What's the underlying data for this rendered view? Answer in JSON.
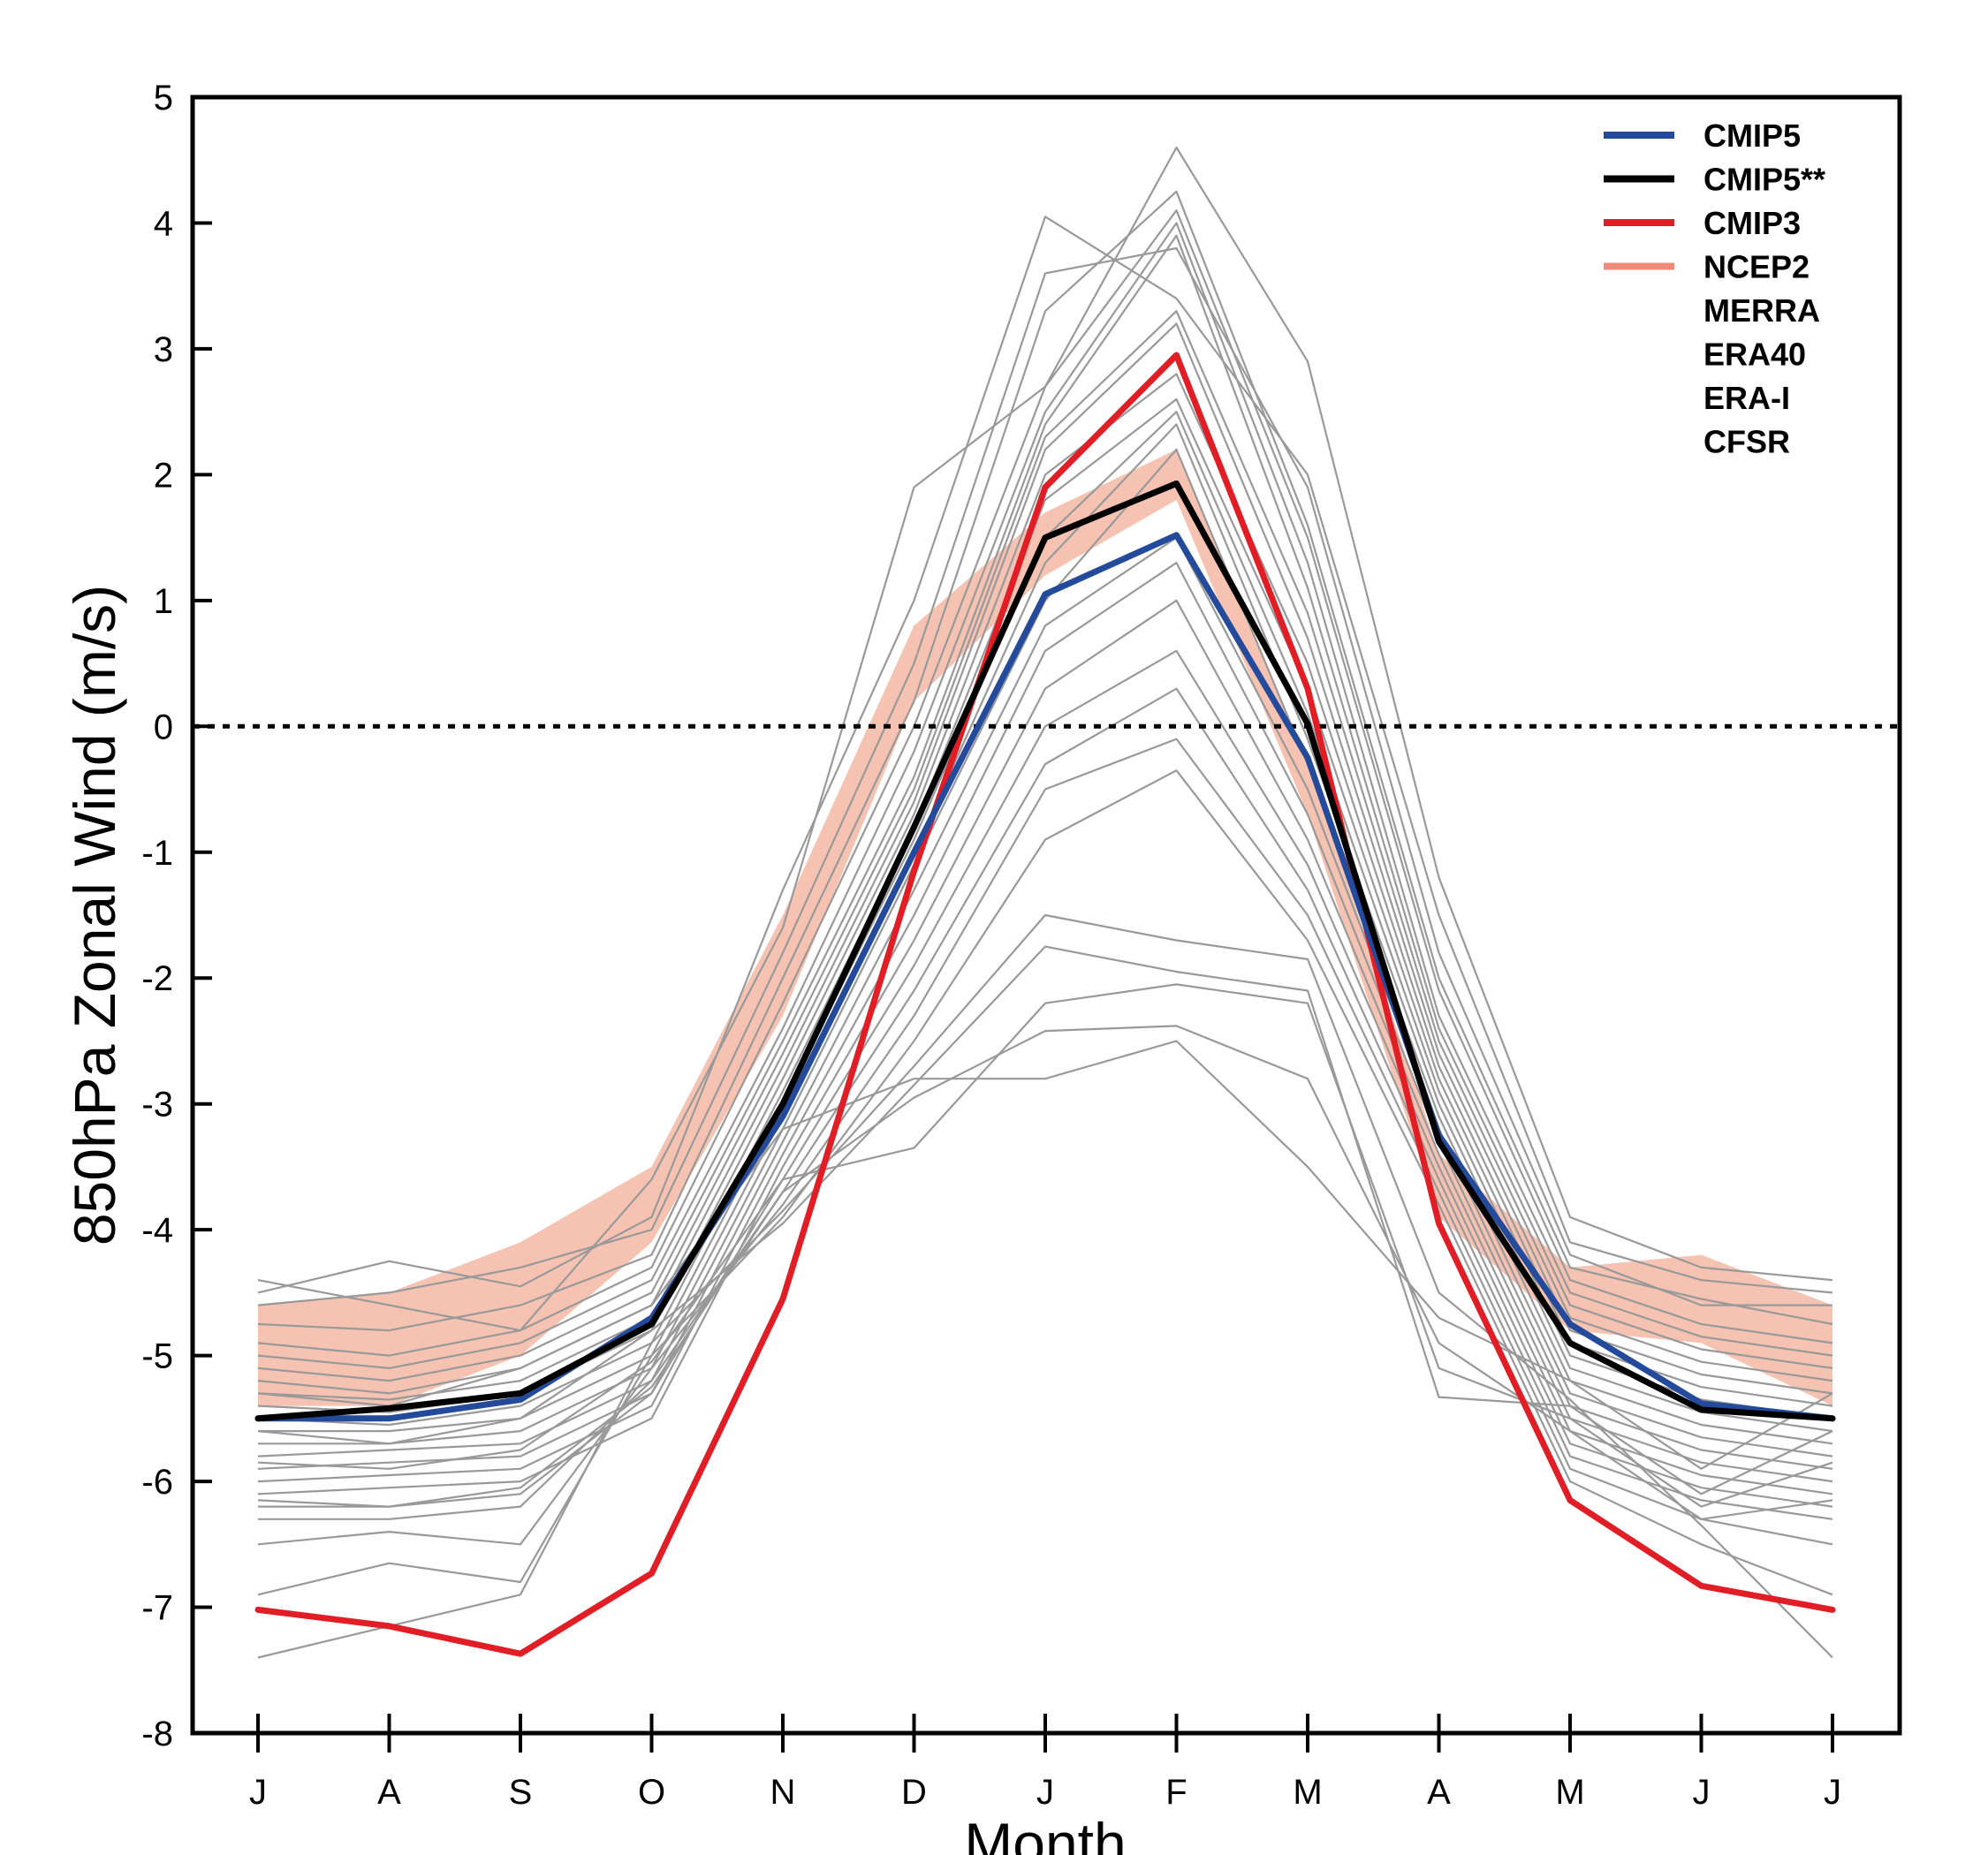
{
  "chart_data": {
    "type": "line",
    "xlabel": "Month",
    "ylabel": "850hPa Zonal Wind (m/s)",
    "categories": [
      "J",
      "A",
      "S",
      "O",
      "N",
      "D",
      "J",
      "F",
      "M",
      "A",
      "M",
      "J",
      "J"
    ],
    "ylim": [
      -8,
      5
    ],
    "yticks": [
      5,
      4,
      3,
      2,
      1,
      0,
      -1,
      -2,
      -3,
      -4,
      -5,
      -6,
      -7,
      -8
    ],
    "zero_line": {
      "value": 0,
      "style": "dotted",
      "color": "#000000"
    },
    "legend": {
      "placement": "top-right",
      "entries": [
        {
          "label": "CMIP5",
          "color": "#234a9b"
        },
        {
          "label": "CMIP5**",
          "color": "#000000"
        },
        {
          "label": "CMIP3",
          "color": "#e11d25"
        },
        {
          "label": "NCEP2",
          "color": "#f08a78"
        },
        {
          "label": "MERRA"
        },
        {
          "label": "ERA40"
        },
        {
          "label": "ERA-I"
        },
        {
          "label": "CFSR"
        }
      ]
    },
    "reanalysis_band": {
      "color": "#f4b9a4",
      "upper": [
        -4.6,
        -4.5,
        -4.1,
        -3.5,
        -1.5,
        0.8,
        1.7,
        2.2,
        -0.3,
        -3.4,
        -4.3,
        -4.2,
        -4.6
      ],
      "lower": [
        -5.4,
        -5.4,
        -5.0,
        -4.1,
        -2.3,
        0.2,
        1.2,
        1.8,
        -0.7,
        -3.9,
        -4.8,
        -4.9,
        -5.4
      ]
    },
    "series": [
      {
        "name": "CMIP5",
        "color": "#234a9b",
        "values": [
          -5.5,
          -5.5,
          -5.35,
          -4.7,
          -3.1,
          -1.0,
          1.05,
          1.52,
          -0.25,
          -3.25,
          -4.75,
          -5.38,
          -5.5
        ]
      },
      {
        "name": "CMIP5**",
        "color": "#000000",
        "values": [
          -5.5,
          -5.42,
          -5.3,
          -4.75,
          -3.0,
          -0.8,
          1.5,
          1.93,
          0.02,
          -3.3,
          -4.9,
          -5.43,
          -5.5
        ]
      },
      {
        "name": "CMIP3",
        "color": "#e11d25",
        "values": [
          -7.02,
          -7.15,
          -7.37,
          -6.73,
          -4.55,
          -1.15,
          1.9,
          2.95,
          0.3,
          -3.95,
          -6.15,
          -6.83,
          -7.02
        ]
      }
    ],
    "models": {
      "color": "#999999",
      "values": [
        [
          -4.4,
          -4.6,
          -4.8,
          -3.6,
          -1.6,
          1.9,
          2.7,
          4.6,
          2.9,
          -1.2,
          -3.9,
          -4.3,
          -4.4
        ],
        [
          -4.5,
          -4.25,
          -4.45,
          -3.9,
          -1.3,
          1.0,
          4.05,
          3.4,
          2.0,
          -1.5,
          -4.1,
          -4.4,
          -4.5
        ],
        [
          -4.6,
          -4.5,
          -4.3,
          -4.0,
          -1.8,
          0.5,
          3.6,
          3.8,
          1.9,
          -1.8,
          -4.2,
          -4.6,
          -4.6
        ],
        [
          -4.75,
          -4.8,
          -4.6,
          -4.2,
          -2.0,
          0.2,
          3.3,
          4.25,
          1.6,
          -2.0,
          -4.3,
          -4.55,
          -4.75
        ],
        [
          -4.9,
          -5.0,
          -4.8,
          -4.3,
          -2.2,
          0.0,
          2.7,
          4.1,
          1.5,
          -2.1,
          -4.4,
          -4.75,
          -4.9
        ],
        [
          -5.0,
          -5.1,
          -4.9,
          -4.4,
          -2.4,
          -0.2,
          2.5,
          4.0,
          1.3,
          -2.3,
          -4.5,
          -4.85,
          -5.0
        ],
        [
          -5.1,
          -5.2,
          -5.0,
          -4.5,
          -2.5,
          -0.4,
          2.4,
          3.9,
          1.1,
          -2.4,
          -4.6,
          -4.95,
          -5.1
        ],
        [
          -5.2,
          -5.3,
          -5.1,
          -4.6,
          -2.6,
          -0.5,
          2.3,
          3.3,
          0.9,
          -2.5,
          -4.7,
          -5.05,
          -5.2
        ],
        [
          -5.3,
          -5.35,
          -5.2,
          -4.7,
          -2.7,
          -0.6,
          2.2,
          3.2,
          0.7,
          -2.6,
          -4.8,
          -5.15,
          -5.3
        ],
        [
          -5.4,
          -5.45,
          -5.3,
          -4.8,
          -2.8,
          -0.7,
          2.0,
          2.8,
          0.5,
          -2.7,
          -4.9,
          -5.25,
          -5.4
        ],
        [
          -5.5,
          -5.55,
          -5.4,
          -4.9,
          -2.9,
          -0.8,
          1.8,
          2.6,
          0.3,
          -2.8,
          -5.0,
          -5.35,
          -5.5
        ],
        [
          -5.6,
          -5.6,
          -5.5,
          -5.0,
          -3.0,
          -0.9,
          1.5,
          2.5,
          0.1,
          -2.9,
          -5.1,
          -5.45,
          -5.6
        ],
        [
          -5.7,
          -5.7,
          -5.6,
          -5.1,
          -3.1,
          -1.0,
          1.3,
          2.4,
          -0.1,
          -3.0,
          -5.2,
          -5.55,
          -5.7
        ],
        [
          -5.8,
          -5.75,
          -5.7,
          -5.2,
          -3.2,
          -1.1,
          1.0,
          2.2,
          -0.3,
          -3.1,
          -5.3,
          -5.65,
          -5.8
        ],
        [
          -5.9,
          -5.85,
          -5.8,
          -5.3,
          -3.3,
          -1.3,
          0.8,
          1.5,
          -0.5,
          -3.2,
          -5.4,
          -5.75,
          -5.9
        ],
        [
          -6.0,
          -5.95,
          -5.9,
          -5.4,
          -3.4,
          -1.5,
          0.6,
          1.3,
          -0.7,
          -3.3,
          -5.5,
          -5.85,
          -6.0
        ],
        [
          -6.1,
          -6.05,
          -6.0,
          -5.5,
          -3.5,
          -1.7,
          0.3,
          1.0,
          -0.9,
          -3.4,
          -5.6,
          -5.95,
          -6.1
        ],
        [
          -6.2,
          -6.2,
          -6.1,
          -5.3,
          -3.6,
          -1.9,
          0.0,
          0.6,
          -1.1,
          -3.5,
          -5.7,
          -6.05,
          -6.2
        ],
        [
          -6.3,
          -6.3,
          -6.2,
          -5.2,
          -3.7,
          -2.1,
          -0.3,
          0.3,
          -1.3,
          -3.6,
          -5.8,
          -6.15,
          -6.3
        ],
        [
          -6.5,
          -6.4,
          -6.5,
          -5.1,
          -3.8,
          -2.3,
          -0.5,
          -0.1,
          -1.5,
          -3.7,
          -5.9,
          -6.3,
          -6.5
        ],
        [
          -6.9,
          -6.65,
          -6.8,
          -5.0,
          -3.9,
          -2.5,
          -0.9,
          -0.35,
          -1.7,
          -3.8,
          -6.0,
          -6.5,
          -6.9
        ],
        [
          -7.4,
          -7.15,
          -6.9,
          -4.9,
          -3.85,
          -2.7,
          -1.5,
          -1.7,
          -1.85,
          -4.5,
          -5.35,
          -6.35,
          -7.4
        ],
        [
          -5.6,
          -5.7,
          -5.5,
          -4.8,
          -3.95,
          -2.85,
          -1.75,
          -1.95,
          -2.1,
          -5.33,
          -5.4,
          -6.1,
          -5.6
        ],
        [
          -5.85,
          -5.9,
          -5.75,
          -5.05,
          -3.6,
          -3.35,
          -2.2,
          -2.05,
          -2.2,
          -5.1,
          -5.5,
          -6.2,
          -5.85
        ],
        [
          -6.15,
          -6.2,
          -6.05,
          -5.25,
          -3.7,
          -2.95,
          -2.42,
          -2.38,
          -2.8,
          -4.9,
          -5.6,
          -6.3,
          -6.15
        ],
        [
          -5.3,
          -5.4,
          -5.1,
          -4.6,
          -3.2,
          -2.8,
          -2.8,
          -2.5,
          -3.5,
          -4.7,
          -5.2,
          -5.9,
          -5.3
        ]
      ]
    }
  }
}
